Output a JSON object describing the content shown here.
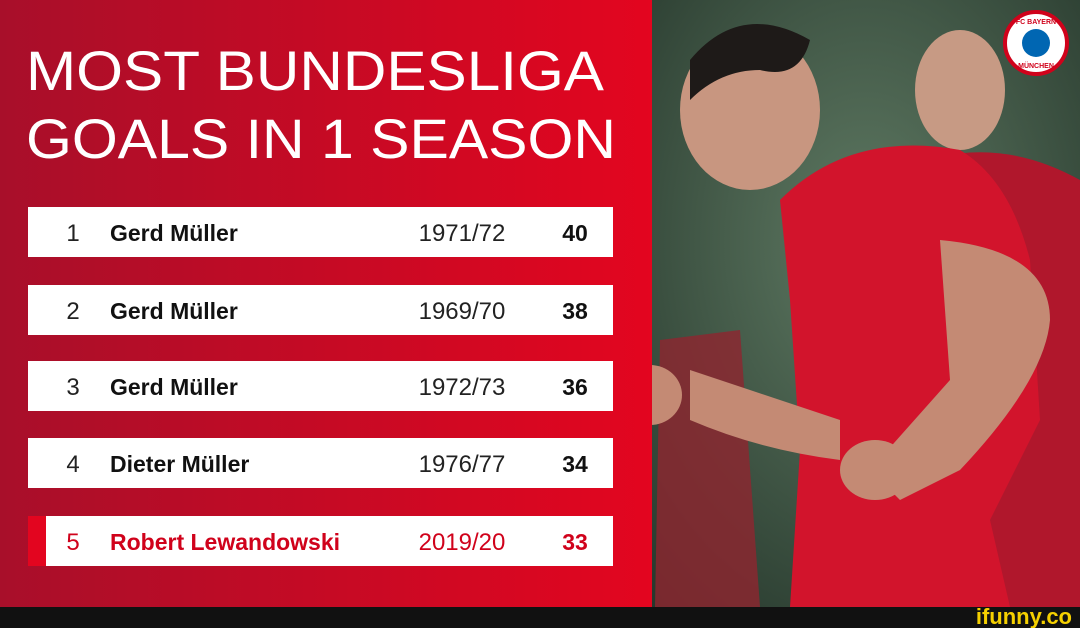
{
  "header": {
    "title_lines": [
      "MOST BUNDESLIGA",
      "GOALS IN 1 SEASON"
    ]
  },
  "table": {
    "rows": [
      [
        "1",
        "Gerd Müller",
        "1971/72",
        "40"
      ],
      [
        "2",
        "Gerd Müller",
        "1969/70",
        "38"
      ],
      [
        "3",
        "Gerd Müller",
        "1972/73",
        "36"
      ],
      [
        "4",
        "Dieter Müller",
        "1976/77",
        "34"
      ],
      [
        "5",
        "Robert Lewandowski",
        "2019/20",
        "33"
      ]
    ]
  },
  "logo": {
    "lines": [
      "FC BAYERN",
      "MÜNCHEN"
    ]
  },
  "watermark": "ifunny.co"
}
